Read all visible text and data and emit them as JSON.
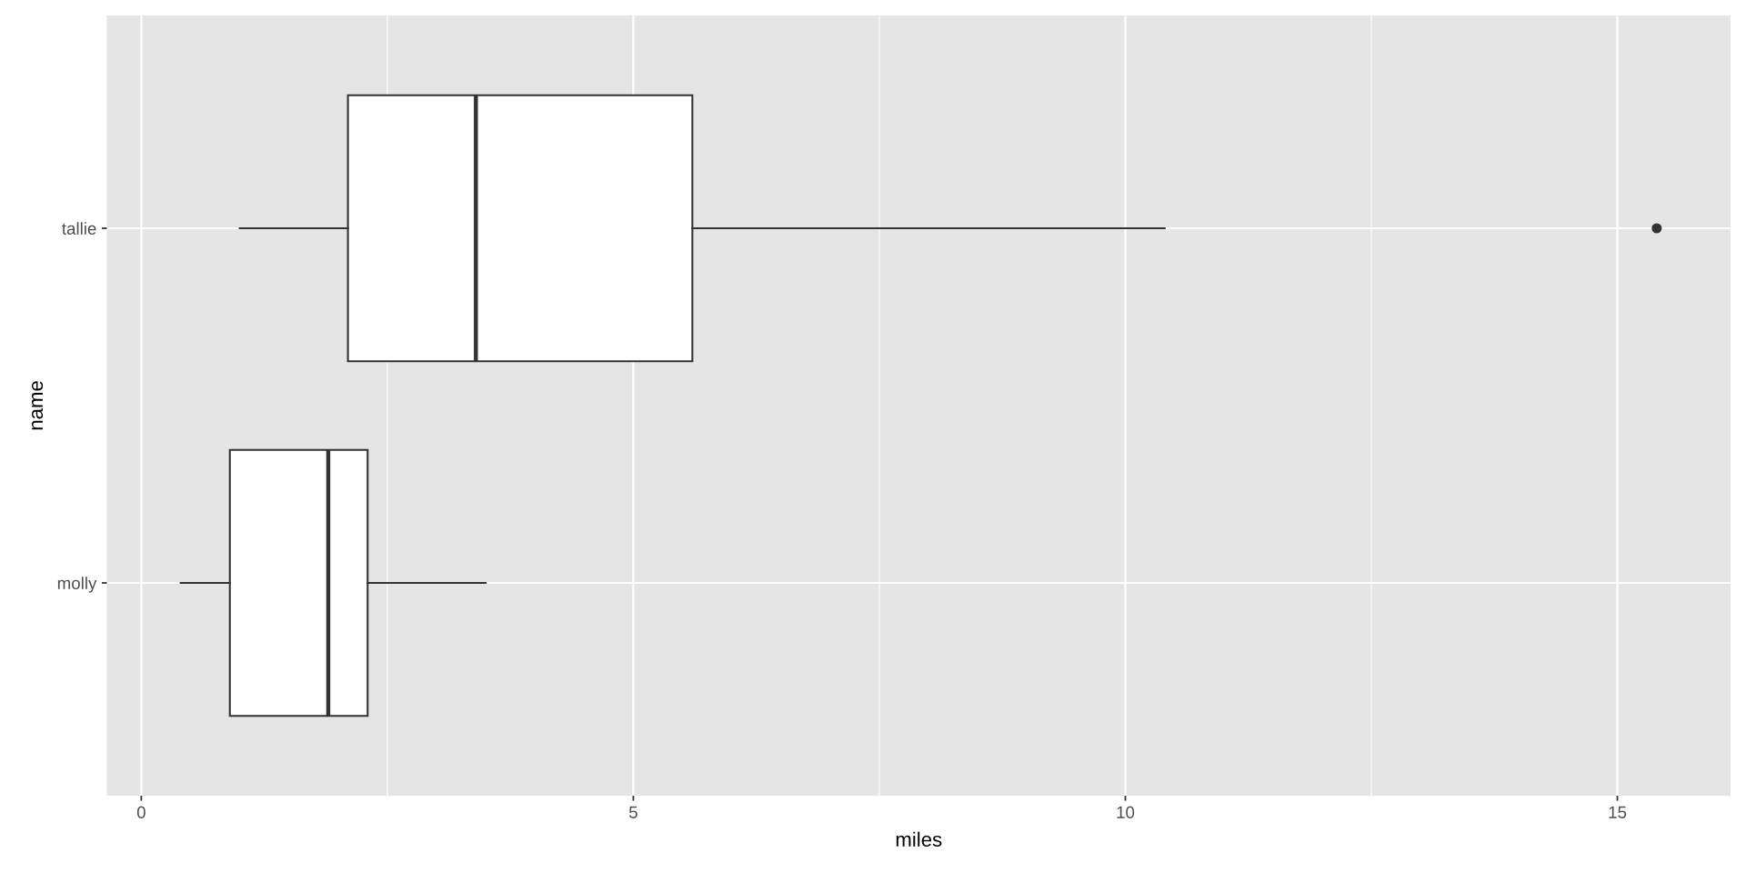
{
  "chart_data": {
    "type": "box",
    "orientation": "horizontal",
    "xlabel": "miles",
    "ylabel": "name",
    "categories": [
      "tallie",
      "molly"
    ],
    "boxes": [
      {
        "low": 1.0,
        "q1": 2.1,
        "median": 3.4,
        "q3": 5.6,
        "high": 10.4,
        "outliers": [
          15.4
        ]
      },
      {
        "low": 0.4,
        "q1": 0.9,
        "median": 1.9,
        "q3": 2.3,
        "high": 3.5
      }
    ],
    "color": "#333333",
    "xlim": [
      -0.35,
      16.15
    ],
    "xticks": [
      0,
      5,
      10,
      15
    ],
    "grid": true
  }
}
